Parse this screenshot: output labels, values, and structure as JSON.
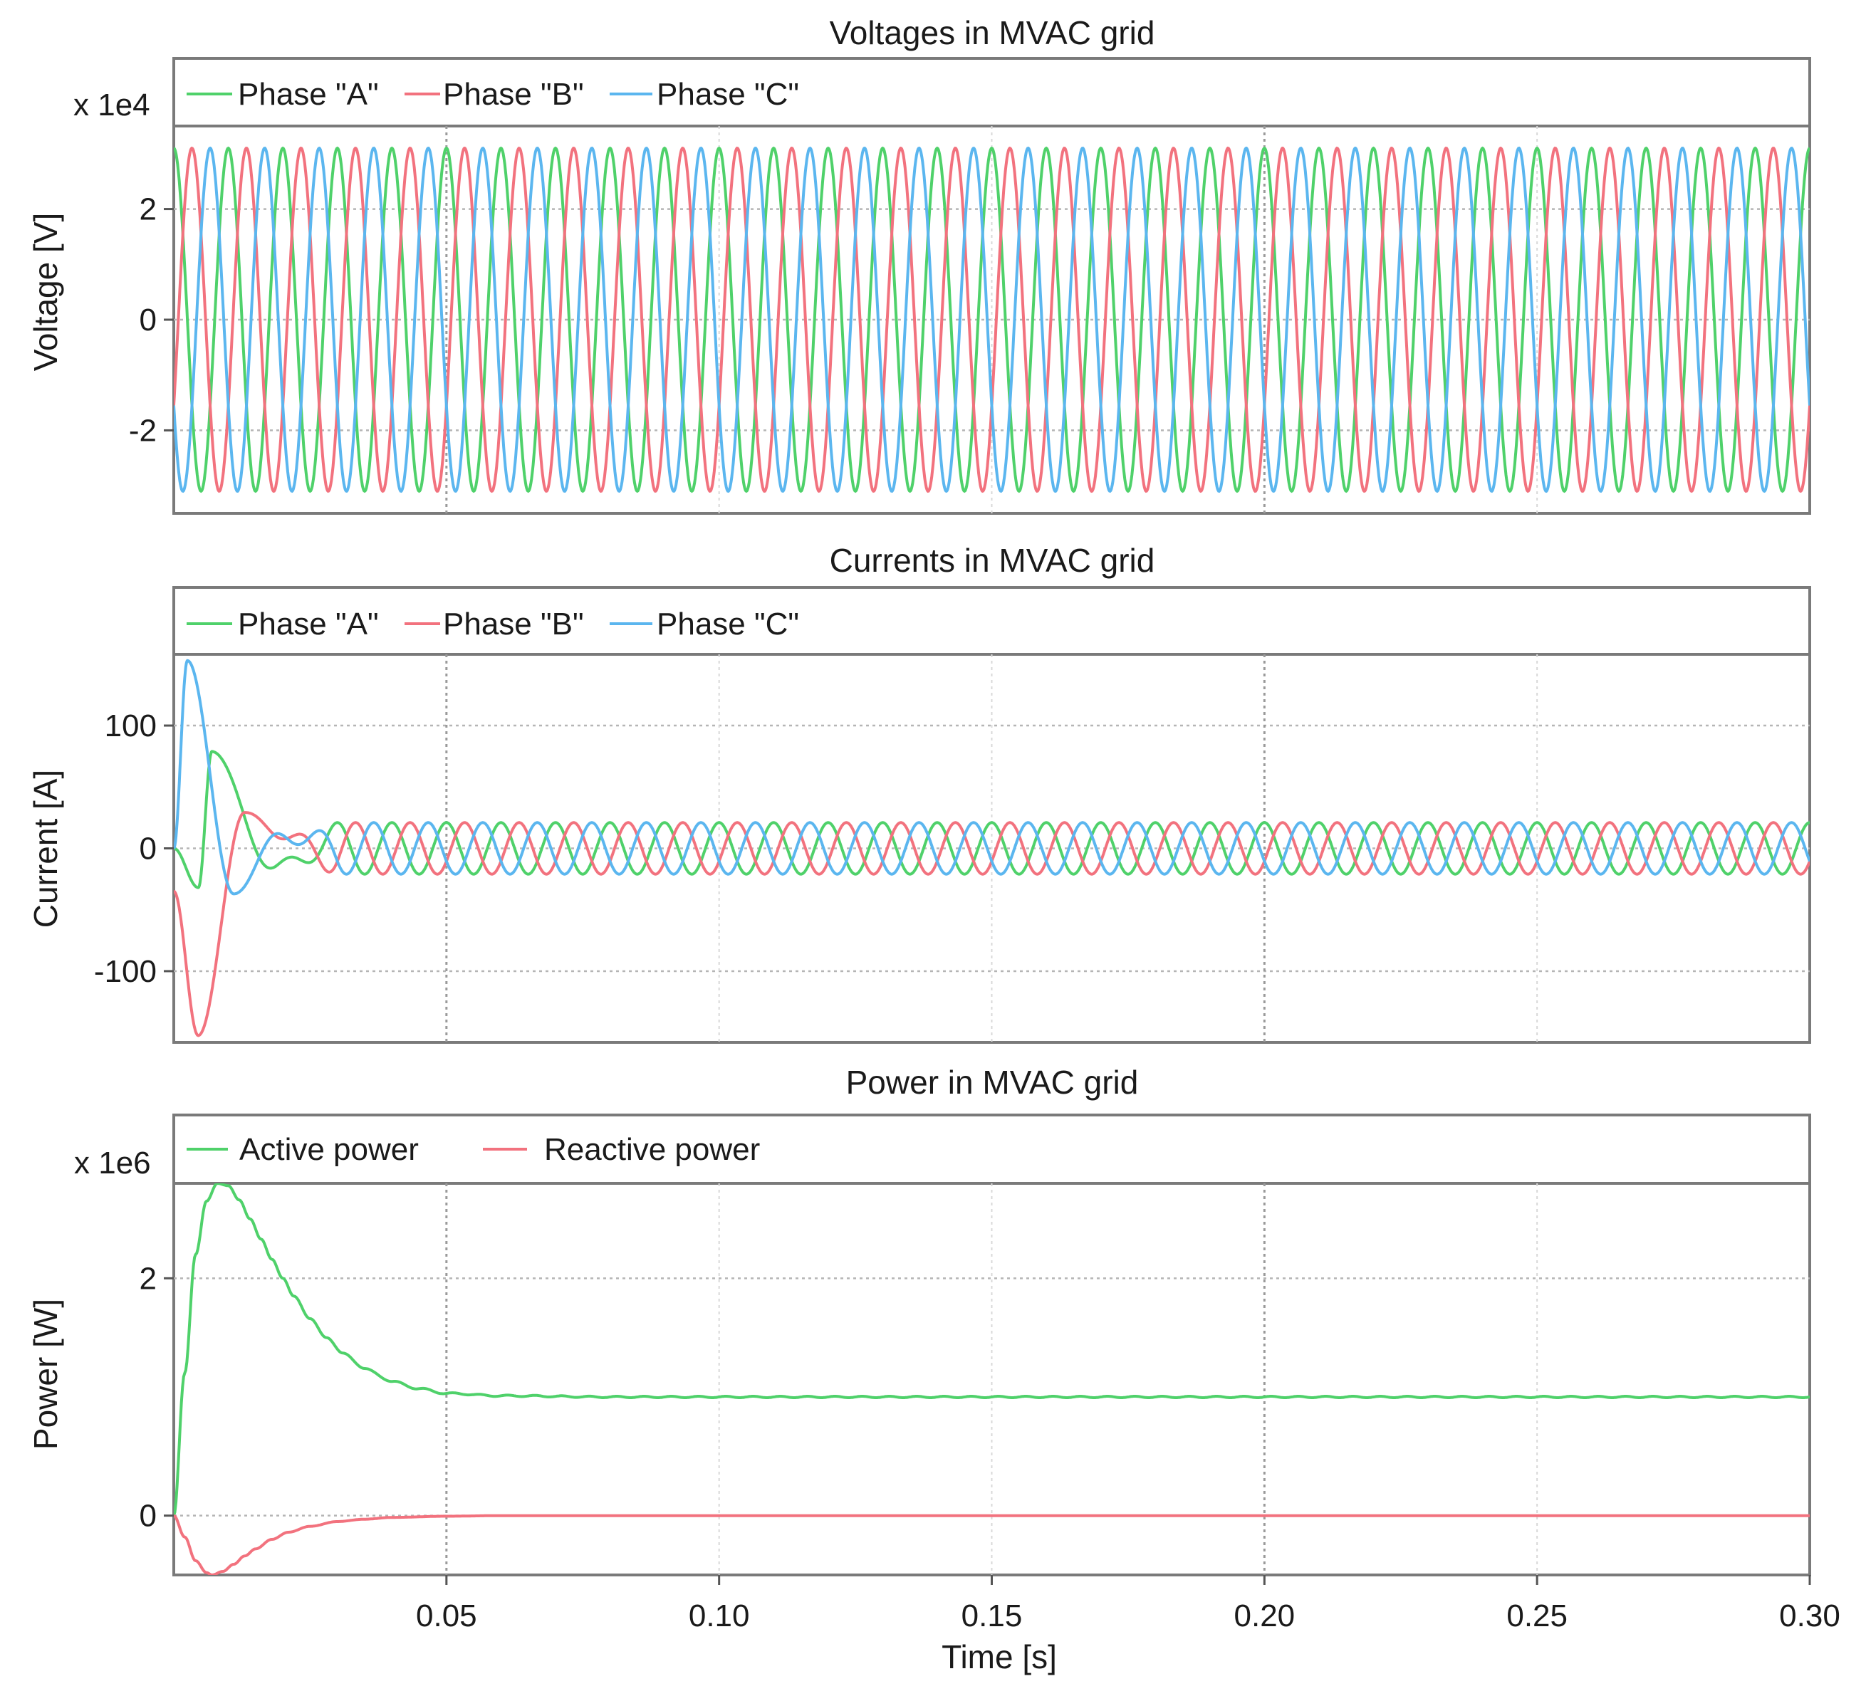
{
  "chart_data": [
    {
      "type": "line",
      "title": "Voltages in MVAC grid",
      "ylabel": "Voltage [V]",
      "scale_label": "x 1e4",
      "xlabel": "",
      "xlim": [
        0,
        0.3
      ],
      "ylim": [
        -3.5,
        3.5
      ],
      "yticks": [
        2,
        0,
        -2
      ],
      "ytick_labels": [
        "2",
        "0",
        "-2"
      ],
      "grid": true,
      "legend": "top-left",
      "legend_entries": [
        "Phase \"A\"",
        "Phase \"B\"",
        "Phase \"C\""
      ],
      "series": [
        {
          "name": "Phase \"A\"",
          "color": "#4fd16a",
          "waveform": "sinusoid",
          "amplitude": 3.1,
          "frequency_hz": 100,
          "phase_deg": 90,
          "values_at_x": {
            "x": [
              0,
              0.05,
              0.1,
              0.15,
              0.2,
              0.25,
              0.3
            ],
            "y": [
              3.1,
              3.1,
              3.1,
              3.1,
              3.1,
              3.1,
              3.1
            ]
          }
        },
        {
          "name": "Phase \"B\"",
          "color": "#f2727e",
          "waveform": "sinusoid",
          "amplitude": 3.1,
          "frequency_hz": 100,
          "phase_deg": -30,
          "values_at_x": {
            "x": [
              0,
              0.05,
              0.1,
              0.15,
              0.2,
              0.25,
              0.3
            ],
            "y": [
              -1.55,
              -1.55,
              -1.55,
              -1.55,
              -1.55,
              -1.55,
              -1.55
            ]
          }
        },
        {
          "name": "Phase \"C\"",
          "color": "#5bb6ef",
          "waveform": "sinusoid",
          "amplitude": 3.1,
          "frequency_hz": 100,
          "phase_deg": 210,
          "values_at_x": {
            "x": [
              0,
              0.05,
              0.1,
              0.15,
              0.2,
              0.25,
              0.3
            ],
            "y": [
              -1.55,
              -1.55,
              -1.55,
              -1.55,
              -1.55,
              -1.55,
              -1.55
            ]
          }
        }
      ]
    },
    {
      "type": "line",
      "title": "Currents in MVAC grid",
      "ylabel": "Current [A]",
      "xlabel": "",
      "xlim": [
        0,
        0.3
      ],
      "ylim": [
        -158,
        158
      ],
      "yticks": [
        100,
        0,
        -100
      ],
      "ytick_labels": [
        "100",
        "0",
        "-100"
      ],
      "grid": true,
      "legend": "top-left",
      "legend_entries": [
        "Phase \"A\"",
        "Phase \"B\"",
        "Phase \"C\""
      ],
      "series": [
        {
          "name": "Phase \"A\"",
          "color": "#4fd16a",
          "steady_amplitude": 21,
          "frequency_hz": 100,
          "transient_peaks": [
            {
              "x": 0.0045,
              "y": -32
            },
            {
              "x": 0.007,
              "y": 80
            },
            {
              "x": 0.019,
              "y": -24
            }
          ]
        },
        {
          "name": "Phase \"B\"",
          "color": "#f2727e",
          "steady_amplitude": 21,
          "frequency_hz": 100,
          "transient_peaks": [
            {
              "x": 0.0,
              "y": -35
            },
            {
              "x": 0.0045,
              "y": -153
            },
            {
              "x": 0.013,
              "y": 30
            }
          ]
        },
        {
          "name": "Phase \"C\"",
          "color": "#5bb6ef",
          "steady_amplitude": 21,
          "frequency_hz": 100,
          "transient_peaks": [
            {
              "x": 0.0025,
              "y": 153
            },
            {
              "x": 0.011,
              "y": -38
            },
            {
              "x": 0.021,
              "y": 21
            }
          ]
        }
      ]
    },
    {
      "type": "line",
      "title": "Power in MVAC grid",
      "ylabel": "Power [W]",
      "scale_label": "x 1e6",
      "xlabel": "Time [s]",
      "xlim": [
        0,
        0.3
      ],
      "ylim": [
        -0.5,
        2.8
      ],
      "yticks": [
        2,
        0
      ],
      "ytick_labels": [
        "2",
        "0"
      ],
      "xticks": [
        0.05,
        0.1,
        0.15,
        0.2,
        0.25,
        0.3
      ],
      "xtick_labels": [
        "0.05",
        "0.10",
        "0.15",
        "0.20",
        "0.25",
        "0.30"
      ],
      "grid": true,
      "legend": "top-left",
      "legend_entries": [
        "Active power",
        "Reactive power"
      ],
      "series": [
        {
          "name": "Active power",
          "color": "#4fd16a",
          "x": [
            0,
            0.002,
            0.004,
            0.006,
            0.008,
            0.01,
            0.012,
            0.014,
            0.016,
            0.018,
            0.02,
            0.022,
            0.025,
            0.028,
            0.031,
            0.035,
            0.04,
            0.045,
            0.05,
            0.06,
            0.08,
            0.1,
            0.15,
            0.2,
            0.25,
            0.3
          ],
          "y": [
            0.0,
            1.2,
            2.2,
            2.65,
            2.8,
            2.78,
            2.66,
            2.5,
            2.33,
            2.16,
            2.0,
            1.85,
            1.66,
            1.5,
            1.37,
            1.24,
            1.13,
            1.07,
            1.03,
            1.01,
            1.0,
            1.0,
            1.0,
            1.0,
            1.0,
            1.0
          ]
        },
        {
          "name": "Reactive power",
          "color": "#f2727e",
          "x": [
            0,
            0.002,
            0.004,
            0.006,
            0.007,
            0.009,
            0.011,
            0.013,
            0.015,
            0.018,
            0.021,
            0.025,
            0.03,
            0.035,
            0.04,
            0.05,
            0.06,
            0.1,
            0.15,
            0.2,
            0.25,
            0.3
          ],
          "y": [
            0.0,
            -0.18,
            -0.38,
            -0.48,
            -0.5,
            -0.47,
            -0.41,
            -0.34,
            -0.28,
            -0.2,
            -0.14,
            -0.09,
            -0.05,
            -0.03,
            -0.015,
            -0.005,
            0.0,
            0.0,
            0.0,
            0.0,
            0.0,
            0.0
          ]
        }
      ]
    }
  ]
}
